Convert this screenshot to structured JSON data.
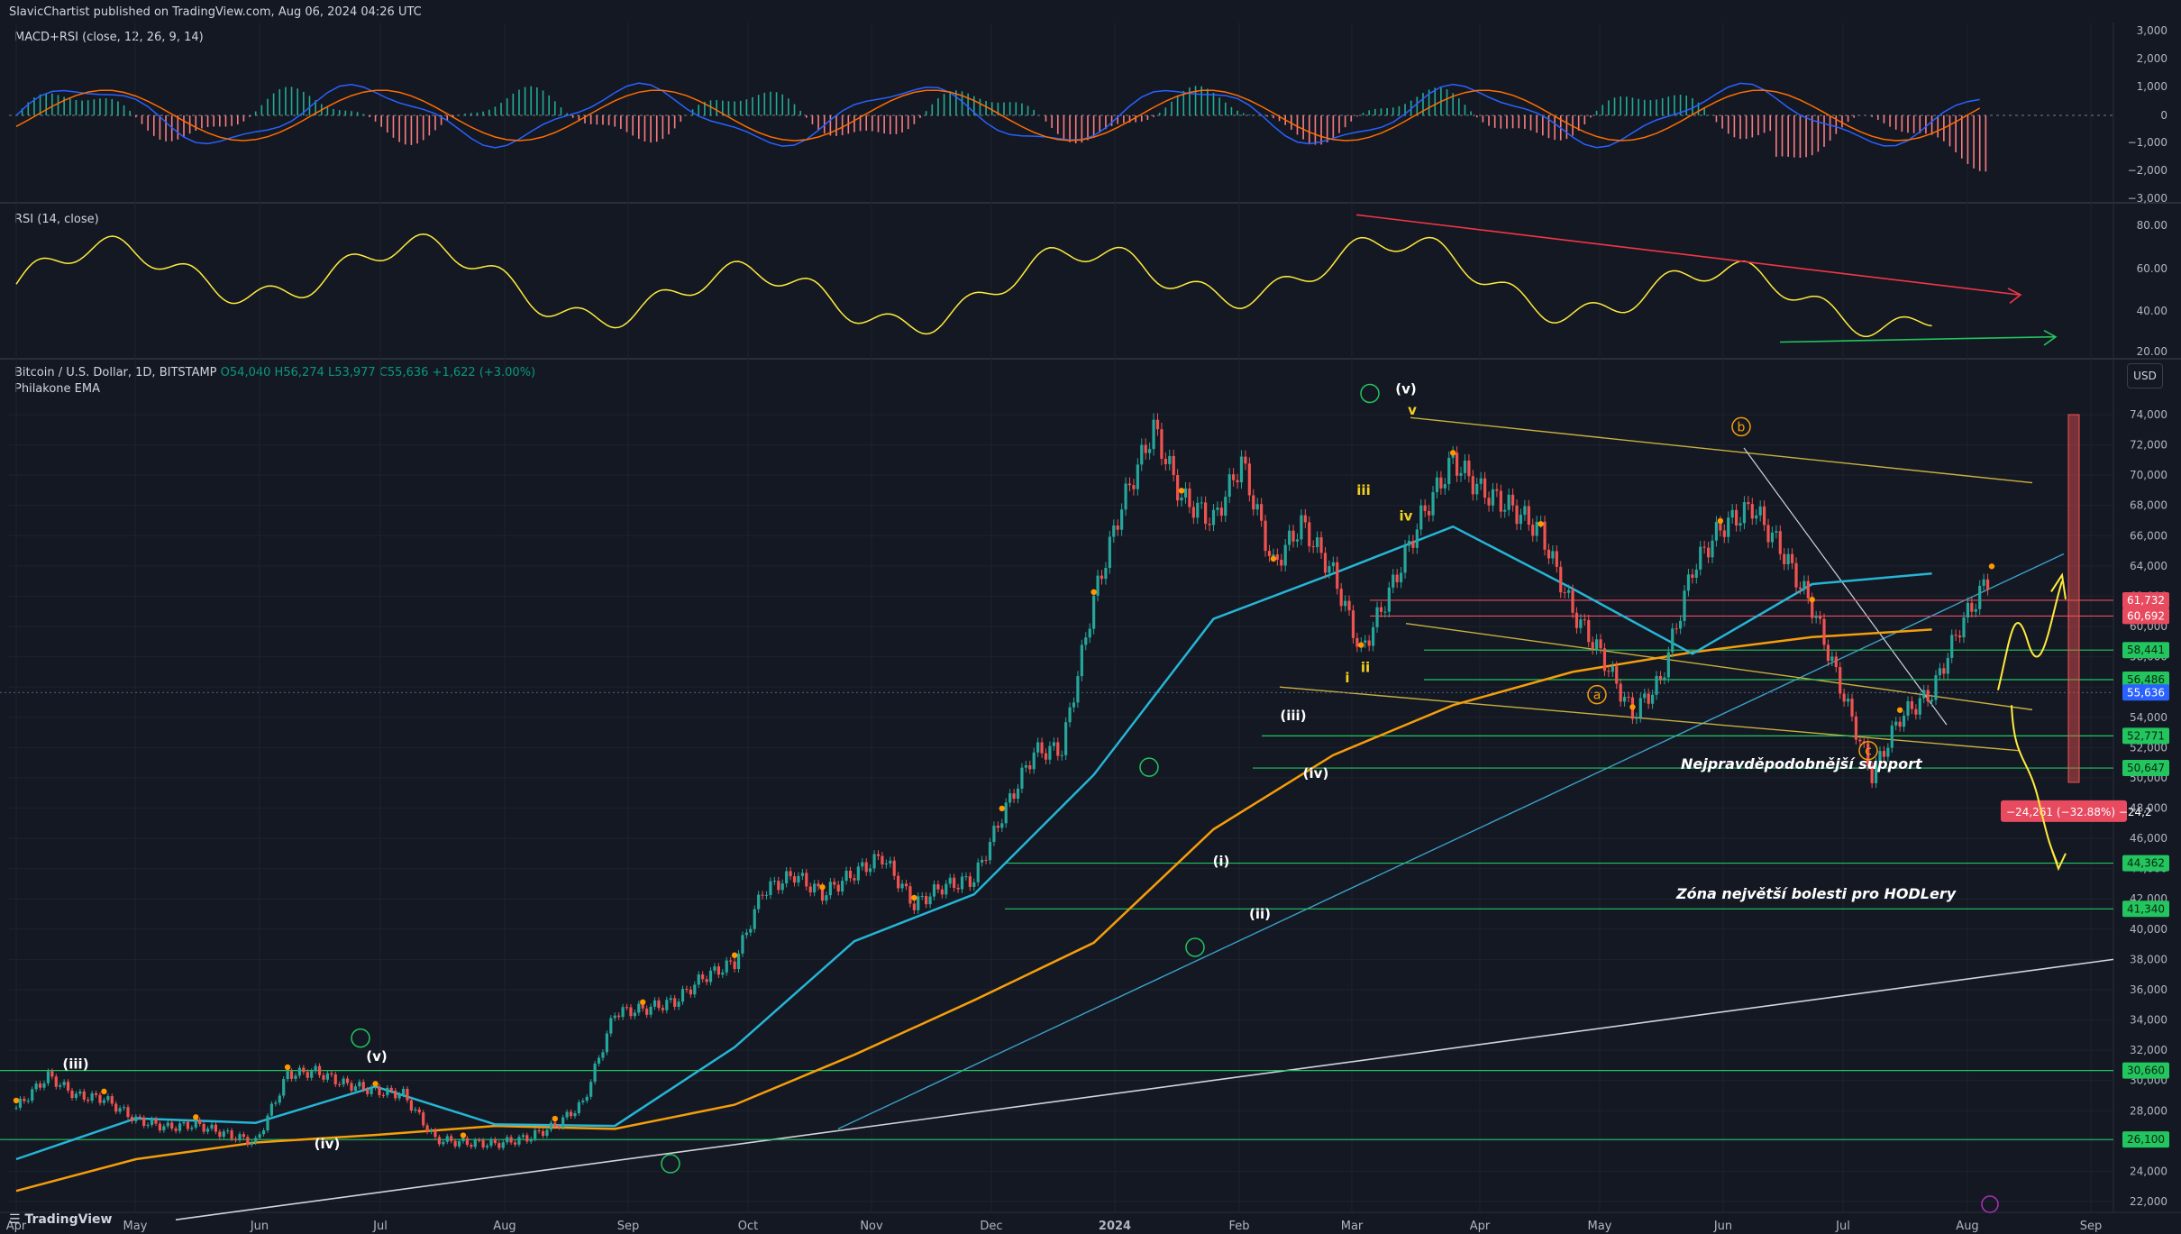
{
  "header": {
    "publish_line": "SlavicChartist published on TradingView.com, Aug 06, 2024 04:26 UTC"
  },
  "macd": {
    "label": "MACD+RSI (close, 12, 26, 9, 14)",
    "ticks": [
      "3,000",
      "2,000",
      "1,000",
      "0",
      "−1,000",
      "−2,000",
      "−3,000"
    ]
  },
  "rsi": {
    "label": "RSI (14, close)",
    "ticks": [
      "80.00",
      "60.00",
      "40.00",
      "20.00"
    ]
  },
  "main": {
    "symbol": "Bitcoin / U.S. Dollar, 1D, BITSTAMP",
    "o": "O54,040",
    "h": "H56,274",
    "l": "L53,977",
    "c": "C55,636",
    "chg": "+1,622 (+3.00%)",
    "indicator": "Philakone EMA",
    "currency": "USD"
  },
  "chart_data": {
    "type": "line",
    "title": "Bitcoin / U.S. Dollar, 1D, BITSTAMP",
    "x_ticks": [
      "Apr",
      "May",
      "Jun",
      "Jul",
      "Aug",
      "Sep",
      "Oct",
      "Nov",
      "Dec",
      "2024",
      "Feb",
      "Mar",
      "Apr",
      "May",
      "Jun",
      "Jul",
      "Aug",
      "Sep"
    ],
    "y_ticks": [
      "74,000",
      "72,000",
      "70,000",
      "68,000",
      "66,000",
      "64,000",
      "62,000",
      "60,000",
      "58,000",
      "56,000",
      "54,000",
      "52,000",
      "50,000",
      "48,000",
      "46,000",
      "44,000",
      "42,000",
      "40,000",
      "38,000",
      "36,000",
      "34,000",
      "32,000",
      "30,000",
      "28,000",
      "26,000",
      "24,000",
      "22,000"
    ],
    "ylim": [
      21000,
      75000
    ],
    "series": [
      {
        "name": "Bitcoin / U.S. Dollar",
        "x": [
          0,
          8,
          15,
          22,
          30,
          38,
          45,
          52,
          60,
          68,
          75,
          82,
          90,
          97,
          105,
          112,
          120,
          128,
          135,
          142,
          150,
          157,
          165,
          172,
          180,
          187,
          195,
          202,
          210,
          217,
          225,
          232,
          240,
          247,
          255,
          262,
          270,
          277,
          285,
          292,
          300,
          307,
          315,
          322,
          330,
          337,
          345,
          352,
          360,
          367,
          375,
          382,
          390,
          397,
          405,
          412,
          420,
          427,
          435,
          442,
          450,
          457,
          465,
          472,
          480,
          487,
          495
        ],
        "values": [
          28200,
          30300,
          29000,
          28800,
          27400,
          26900,
          27100,
          26500,
          25900,
          30400,
          30600,
          29800,
          29300,
          29100,
          26100,
          25900,
          25800,
          26200,
          27000,
          28500,
          34500,
          34700,
          35200,
          36800,
          37800,
          42500,
          43600,
          42300,
          43700,
          44800,
          41600,
          42800,
          43300,
          47500,
          51700,
          51900,
          61800,
          68000,
          73100,
          68500,
          67000,
          70900,
          64000,
          66800,
          63500,
          58300,
          62800,
          67200,
          71000,
          69000,
          67800,
          66300,
          61000,
          58200,
          54200,
          56400,
          63800,
          66500,
          67900,
          65200,
          61300,
          56100,
          50200,
          54000,
          55636,
          60000,
          63500
        ]
      },
      {
        "name": "EMA blue",
        "x": [
          0,
          30,
          60,
          90,
          120,
          150,
          180,
          210,
          240,
          270,
          300,
          330,
          360,
          390,
          420,
          450,
          480
        ],
        "values": [
          24800,
          27500,
          27200,
          29600,
          27100,
          27000,
          32200,
          39200,
          42300,
          50200,
          60500,
          63500,
          66600,
          62500,
          58200,
          62800,
          63500
        ]
      },
      {
        "name": "EMA orange",
        "x": [
          0,
          30,
          60,
          90,
          120,
          150,
          180,
          210,
          240,
          270,
          300,
          330,
          360,
          390,
          420,
          450,
          480
        ],
        "values": [
          22700,
          24800,
          25900,
          26400,
          27000,
          26800,
          28400,
          31700,
          35300,
          39100,
          46600,
          51500,
          54800,
          57000,
          58300,
          59300,
          59800
        ]
      }
    ],
    "price_levels": [
      "61,732",
      "60,692",
      "58,441",
      "56,486",
      "55,636",
      "52,771",
      "50,647",
      "44,362",
      "41,340",
      "30,660",
      "26,100"
    ],
    "measure_label": "−24,261 (−32.88%) −24,2",
    "annotations": {
      "support_label": "Nejpravděpodobnější support",
      "pain_zone_label": "Zóna největší bolesti pro HODLery",
      "wave_labels": [
        "(iii)",
        "(iv)",
        "(v)",
        "i",
        "ii",
        "iii",
        "iv",
        "v",
        "(i)",
        "(ii)",
        "(iii)",
        "(iv)",
        "(v)",
        "a",
        "b",
        "c"
      ]
    }
  },
  "footer": {
    "brand": "TradingView"
  }
}
